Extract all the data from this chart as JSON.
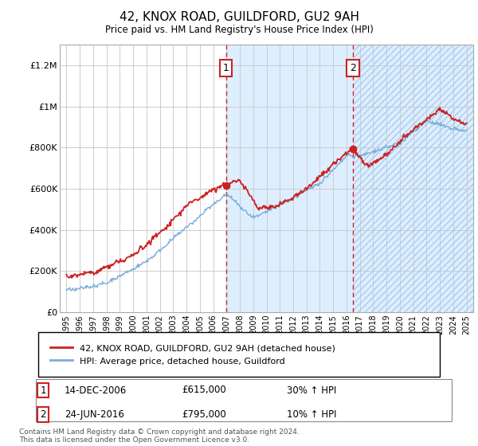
{
  "title": "42, KNOX ROAD, GUILDFORD, GU2 9AH",
  "subtitle": "Price paid vs. HM Land Registry's House Price Index (HPI)",
  "ylabel_ticks": [
    "£0",
    "£200K",
    "£400K",
    "£600K",
    "£800K",
    "£1M",
    "£1.2M"
  ],
  "ytick_values": [
    0,
    200000,
    400000,
    600000,
    800000,
    1000000,
    1200000
  ],
  "ylim": [
    0,
    1300000
  ],
  "xlim_start": 1994.5,
  "xlim_end": 2025.5,
  "purchase1_x": 2006.96,
  "purchase1_y": 615000,
  "purchase1_label": "1",
  "purchase1_date": "14-DEC-2006",
  "purchase1_price": "£615,000",
  "purchase1_hpi": "30% ↑ HPI",
  "purchase2_x": 2016.48,
  "purchase2_y": 795000,
  "purchase2_label": "2",
  "purchase2_date": "24-JUN-2016",
  "purchase2_price": "£795,000",
  "purchase2_hpi": "10% ↑ HPI",
  "legend_line1": "42, KNOX ROAD, GUILDFORD, GU2 9AH (detached house)",
  "legend_line2": "HPI: Average price, detached house, Guildford",
  "footnote": "Contains HM Land Registry data © Crown copyright and database right 2024.\nThis data is licensed under the Open Government Licence v3.0.",
  "hpi_color": "#7aaddc",
  "price_color": "#cc2222",
  "highlight_color": "#ddeeff",
  "bg_color": "#ffffff",
  "grid_color": "#cccccc",
  "marker_color": "#cc2222"
}
